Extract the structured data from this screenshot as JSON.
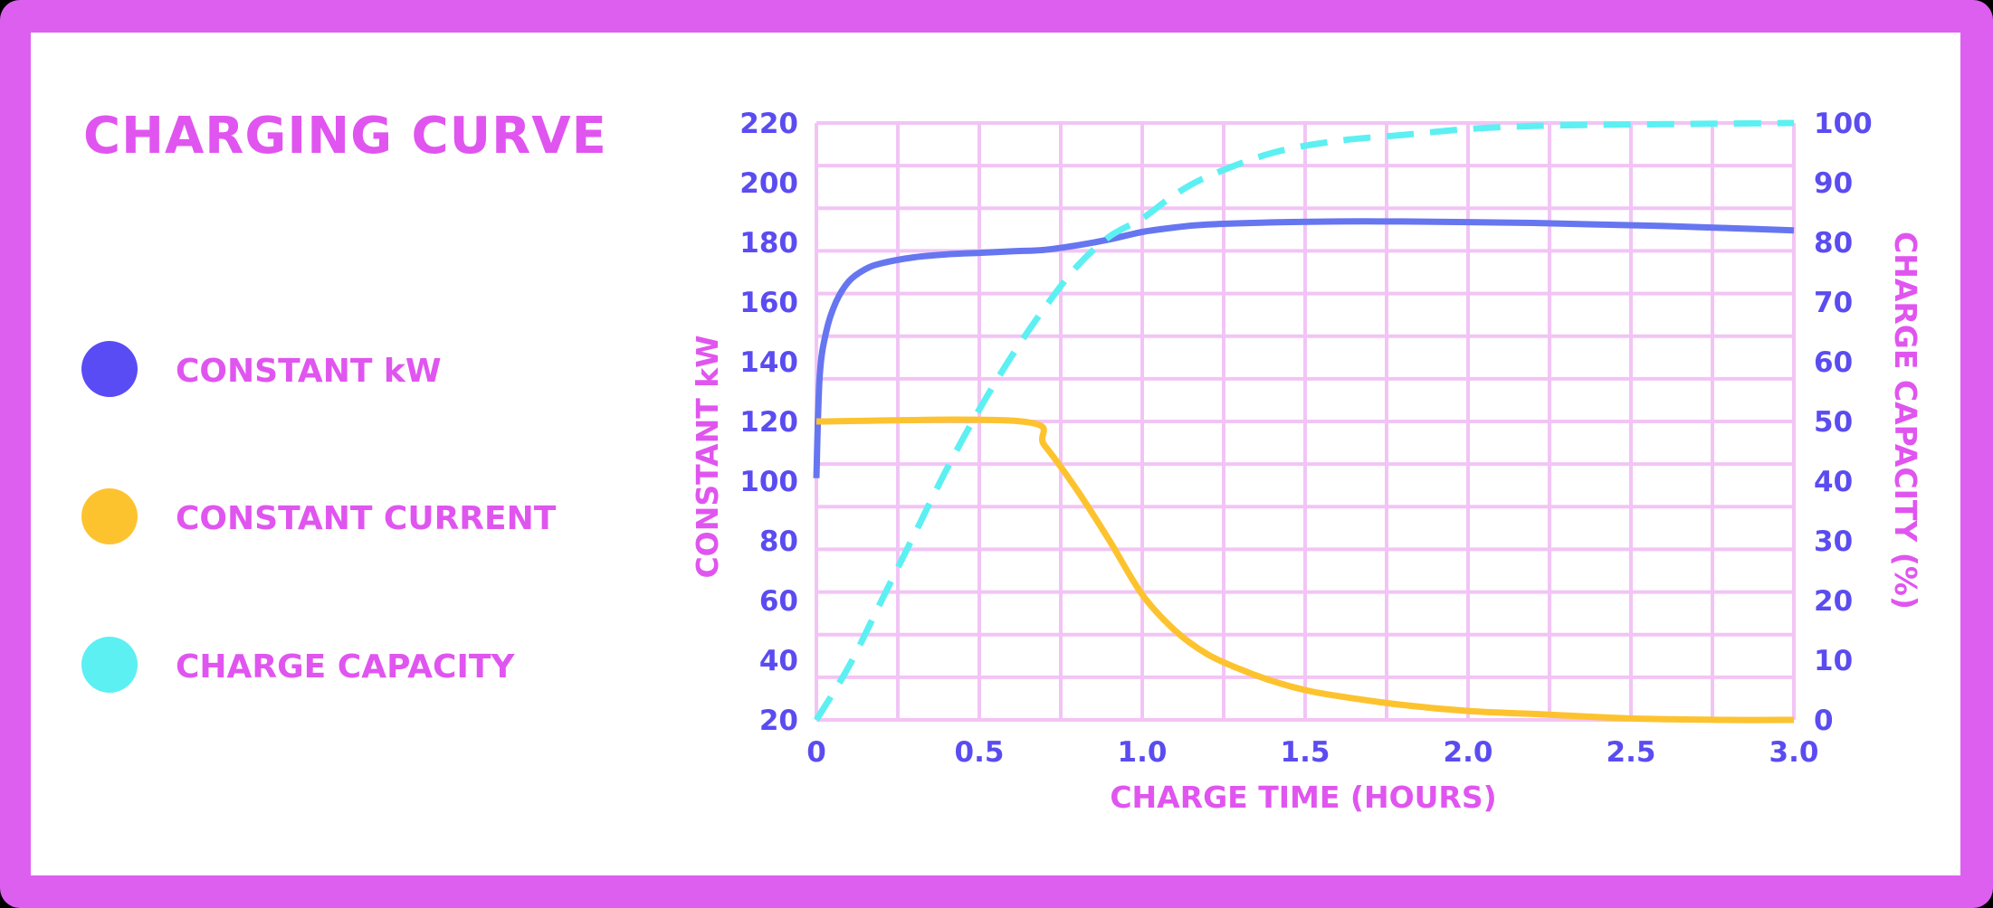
{
  "title": "CHARGING CURVE",
  "colors": {
    "frame": "#dd5ff0",
    "title": "#e055ef",
    "grid": "#f2c4f5",
    "tick": "#5a4cf0",
    "constant_kw": "#6676f0",
    "constant_current": "#fdc32f",
    "charge_capacity": "#5cf0f2"
  },
  "legend": [
    {
      "label": "CONSTANT kW",
      "color": "#5a4cf5"
    },
    {
      "label": "CONSTANT CURRENT",
      "color": "#fdc32f"
    },
    {
      "label": "CHARGE CAPACITY",
      "color": "#5cf0f2"
    }
  ],
  "chart_data": {
    "type": "line",
    "xlabel": "CHARGE TIME (HOURS)",
    "ylabel": "CONSTANT kW",
    "y2label": "CHARGE CAPACITY (%)",
    "xlim": [
      0,
      3
    ],
    "ylim": [
      20,
      220
    ],
    "y2lim": [
      0,
      100
    ],
    "grid": true,
    "x_ticks": [
      "0",
      "0.5",
      "1.0",
      "1.5",
      "2.0",
      "2.5",
      "3.0"
    ],
    "y_ticks": [
      "20",
      "40",
      "60",
      "80",
      "100",
      "120",
      "140",
      "160",
      "180",
      "200",
      "220"
    ],
    "y2_ticks": [
      "0",
      "10",
      "20",
      "30",
      "40",
      "50",
      "60",
      "70",
      "80",
      "90",
      "100"
    ],
    "series": [
      {
        "key": "constant_kw",
        "axis": "left",
        "style": "solid",
        "x": [
          0,
          0.01,
          0.03,
          0.06,
          0.1,
          0.15,
          0.2,
          0.3,
          0.4,
          0.5,
          0.6,
          0.7,
          0.8,
          0.9,
          1.0,
          1.1,
          1.2,
          1.4,
          1.6,
          1.8,
          2.0,
          2.2,
          2.4,
          2.6,
          2.8,
          3.0
        ],
        "values": [
          101,
          135,
          150,
          160,
          167,
          171,
          173,
          175,
          176,
          176.5,
          177,
          177.5,
          179,
          181,
          183.5,
          185,
          186,
          186.7,
          187,
          187,
          186.8,
          186.5,
          186,
          185.5,
          184.8,
          184
        ]
      },
      {
        "key": "constant_current",
        "axis": "left",
        "style": "solid",
        "x": [
          0,
          0.63,
          0.7,
          0.8,
          0.9,
          1.0,
          1.1,
          1.2,
          1.3,
          1.4,
          1.5,
          1.6,
          1.8,
          2.0,
          2.2,
          2.5,
          2.8,
          3.0
        ],
        "values": [
          120,
          120,
          112,
          97,
          80,
          62,
          50,
          42,
          37,
          33,
          30,
          28,
          25,
          23,
          22,
          20.5,
          20,
          20
        ]
      },
      {
        "key": "charge_capacity",
        "axis": "right",
        "style": "dashed",
        "x": [
          0,
          0.1,
          0.2,
          0.3,
          0.4,
          0.5,
          0.6,
          0.7,
          0.8,
          0.9,
          1.0,
          1.1,
          1.2,
          1.4,
          1.6,
          1.8,
          2.0,
          2.2,
          2.4,
          2.6,
          2.8,
          3.0
        ],
        "values": [
          0,
          9,
          20,
          31,
          42,
          52,
          61,
          69,
          76,
          81,
          84,
          88,
          91,
          95,
          97,
          98,
          99,
          99.5,
          99.7,
          99.8,
          99.9,
          100
        ]
      }
    ]
  }
}
